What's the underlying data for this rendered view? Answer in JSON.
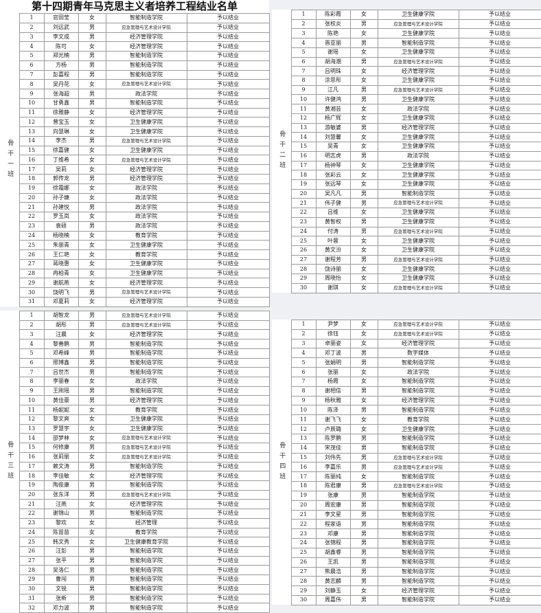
{
  "title": "第十四期青年马克思主义者培养工程结业名单",
  "tables": [
    {
      "label": "骨干一班",
      "rows": [
        [
          1,
          "官田莹",
          "女",
          "智能制造学院",
          "予以结业"
        ],
        [
          2,
          "刘远武",
          "男",
          "应急管理与艺术设计学院",
          "予以结业"
        ],
        [
          3,
          "李文成",
          "男",
          "经济管理学院",
          "予以结业"
        ],
        [
          4,
          "陈可",
          "女",
          "经济管理学院",
          "予以结业"
        ],
        [
          5,
          "郑光楠",
          "男",
          "智能制造学院",
          "予以结业"
        ],
        [
          6,
          "方杨",
          "男",
          "智能制造学院",
          "予以结业"
        ],
        [
          7,
          "彭嘉程",
          "男",
          "智能制造学院",
          "予以结业"
        ],
        [
          8,
          "吴丹花",
          "女",
          "应急管理与艺术设计学院",
          "予以结业"
        ],
        [
          9,
          "张海超",
          "男",
          "政法学院",
          "予以结业"
        ],
        [
          10,
          "甘勇鑫",
          "男",
          "智能制造学院",
          "予以结业"
        ],
        [
          11,
          "徐雅静",
          "女",
          "经济管理学院",
          "予以结业"
        ],
        [
          12,
          "曾宝玉",
          "女",
          "卫生健康学院",
          "予以结业"
        ],
        [
          13,
          "向慧琳",
          "女",
          "卫生健康学院",
          "予以结业"
        ],
        [
          14,
          "李杰",
          "男",
          "应急管理与艺术设计学院",
          "予以结业"
        ],
        [
          15,
          "徐嘉健",
          "女",
          "卫生健康学院",
          "予以结业"
        ],
        [
          16,
          "丁维希",
          "女",
          "应急管理与艺术设计学院",
          "予以结业"
        ],
        [
          17,
          "吴莉",
          "女",
          "经济管理学院",
          "予以结业"
        ],
        [
          18,
          "郭传龙",
          "男",
          "经济管理学院",
          "予以结业"
        ],
        [
          19,
          "徐霜娜",
          "女",
          "政法学院",
          "予以结业"
        ],
        [
          20,
          "孙子婕",
          "女",
          "政法学院",
          "予以结业"
        ],
        [
          21,
          "孙建悦",
          "男",
          "政法学院",
          "予以结业"
        ],
        [
          22,
          "罗玉岚",
          "女",
          "政法学院",
          "予以结业"
        ],
        [
          23,
          "袁硕",
          "男",
          "政法学院",
          "予以结业"
        ],
        [
          24,
          "杨晓楠",
          "女",
          "教育学院",
          "予以结业"
        ],
        [
          25,
          "朱丽青",
          "女",
          "卫生健康学院",
          "予以结业"
        ],
        [
          26,
          "王仁艳",
          "女",
          "教育学院",
          "予以结业"
        ],
        [
          27,
          "蒋晓惠",
          "女",
          "卫生健康学院",
          "予以结业"
        ],
        [
          28,
          "冉柏青",
          "女",
          "卫生健康学院",
          "予以结业"
        ],
        [
          29,
          "谢航燕",
          "女",
          "经济管理学院",
          "予以结业"
        ],
        [
          30,
          "饶明飞",
          "男",
          "应急管理与艺术设计学院",
          "予以结业"
        ],
        [
          31,
          "邓夏莉",
          "女",
          "经济管理学院",
          "予以结业"
        ]
      ]
    },
    {
      "label": "骨干二班",
      "rows": [
        [
          1,
          "陈彩霞",
          "女",
          "卫生健康学院",
          "予以结业"
        ],
        [
          2,
          "张权炎",
          "男",
          "应急管理与艺术设计学院",
          "予以结业"
        ],
        [
          3,
          "陈艳",
          "女",
          "卫生健康学院",
          "予以结业"
        ],
        [
          4,
          "晋亚丽",
          "男",
          "智能制造学院",
          "予以结业"
        ],
        [
          5,
          "谢瑶",
          "女",
          "卫生健康学院",
          "予以结业"
        ],
        [
          6,
          "胡海潮",
          "男",
          "应急管理与艺术设计学院",
          "予以结业"
        ],
        [
          7,
          "吕明珠",
          "女",
          "经济管理学院",
          "予以结业"
        ],
        [
          8,
          "涂思彤",
          "女",
          "卫生健康学院",
          "予以结业"
        ],
        [
          9,
          "江凡",
          "男",
          "应急管理与艺术设计学院",
          "予以结业"
        ],
        [
          10,
          "许健鸿",
          "男",
          "卫生健康学院",
          "予以结业"
        ],
        [
          11,
          "黄湘芸",
          "女",
          "政法学院",
          "予以结业"
        ],
        [
          12,
          "杨广辉",
          "女",
          "卫生健康学院",
          "予以结业"
        ],
        [
          13,
          "游敏婆",
          "男",
          "经济管理学院",
          "予以结业"
        ],
        [
          14,
          "刘慧馨",
          "女",
          "卫生健康学院",
          "予以结业"
        ],
        [
          15,
          "吴青",
          "女",
          "卫生健康学院",
          "予以结业"
        ],
        [
          16,
          "明志虎",
          "男",
          "政法学院",
          "予以结业"
        ],
        [
          17,
          "杨钟琴",
          "女",
          "卫生健康学院",
          "予以结业"
        ],
        [
          18,
          "张彩云",
          "女",
          "卫生健康学院",
          "予以结业"
        ],
        [
          19,
          "张远琴",
          "女",
          "卫生健康学院",
          "予以结业"
        ],
        [
          20,
          "吴凡凡",
          "男",
          "智能制造学院",
          "予以结业"
        ],
        [
          21,
          "伟子健",
          "男",
          "应急管理与艺术设计学院",
          "予以结业"
        ],
        [
          22,
          "吕维",
          "女",
          "卫生健康学院",
          "予以结业"
        ],
        [
          23,
          "黄智权",
          "男",
          "卫生健康学院",
          "予以结业"
        ],
        [
          24,
          "付涛",
          "男",
          "应急管理与艺术设计学院",
          "予以结业"
        ],
        [
          25,
          "叶蓉",
          "女",
          "卫生健康学院",
          "予以结业"
        ],
        [
          26,
          "黄文汾",
          "女",
          "卫生健康学院",
          "予以结业"
        ],
        [
          27,
          "谢程芳",
          "男",
          "应急管理与艺术设计学院",
          "予以结业"
        ],
        [
          28,
          "饶诗丽",
          "女",
          "卫生健康学院",
          "予以结业"
        ],
        [
          29,
          "周晓怡",
          "女",
          "卫生健康学院",
          "予以结业"
        ],
        [
          30,
          "谢琪",
          "女",
          "应急管理与艺术设计学院",
          "予以结业"
        ]
      ]
    },
    {
      "label": "骨干三班",
      "rows": [
        [
          1,
          "胡智龙",
          "男",
          "应急管理与艺术设计学院",
          "予以结业"
        ],
        [
          2,
          "胡彤",
          "男",
          "应急管理与艺术设计学院",
          "予以结业"
        ],
        [
          3,
          "汪晨",
          "女",
          "经济管理学院",
          "予以结业"
        ],
        [
          4,
          "黎善鹏",
          "男",
          "智能制造学院",
          "予以结业"
        ],
        [
          5,
          "邓希峰",
          "男",
          "智能制造学院",
          "予以结业"
        ],
        [
          6,
          "邢博鑫",
          "男",
          "智能制造学院",
          "予以结业"
        ],
        [
          7,
          "吕世杰",
          "男",
          "智能制造学院",
          "予以结业"
        ],
        [
          8,
          "李丽春",
          "女",
          "政法学院",
          "予以结业"
        ],
        [
          9,
          "王刚瑶",
          "男",
          "智能制造学院",
          "予以结业"
        ],
        [
          10,
          "黄佳豪",
          "男",
          "经济管理学院",
          "予以结业"
        ],
        [
          11,
          "杨妮妮",
          "女",
          "教育学院",
          "予以结业"
        ],
        [
          12,
          "黎文爽",
          "女",
          "卫生健康学院",
          "予以结业"
        ],
        [
          13,
          "罗慧宇",
          "女",
          "卫生健康学院",
          "予以结业"
        ],
        [
          14,
          "邵梦林",
          "女",
          "应急管理与艺术设计学院",
          "予以结业"
        ],
        [
          15,
          "何修康",
          "男",
          "应急管理与艺术设计学院",
          "予以结业"
        ],
        [
          16,
          "张莉丽",
          "女",
          "应急管理与艺术设计学院",
          "予以结业"
        ],
        [
          17,
          "赖文涛",
          "男",
          "智能制造学院",
          "予以结业"
        ],
        [
          18,
          "李佳敏",
          "女",
          "经济管理学院",
          "予以结业"
        ],
        [
          19,
          "陶俊康",
          "男",
          "智能制造学院",
          "予以结业"
        ],
        [
          20,
          "张东洋",
          "男",
          "应急管理与艺术设计学院",
          "予以结业"
        ],
        [
          21,
          "汪燕",
          "女",
          "经济管理学院",
          "予以结业"
        ],
        [
          22,
          "谢锦山",
          "男",
          "智能制造学院",
          "予以结业"
        ],
        [
          23,
          "黎欢",
          "女",
          "经济管理",
          "予以结业"
        ],
        [
          24,
          "陈苗苗",
          "女",
          "教育学院",
          "予以结业"
        ],
        [
          25,
          "韩文秀",
          "女",
          "卫生健康教育学院",
          "予以结业"
        ],
        [
          26,
          "汪彭",
          "男",
          "智能制造学院",
          "予以结业"
        ],
        [
          27,
          "张平",
          "男",
          "智能制造学院",
          "予以结业"
        ],
        [
          28,
          "吴洛仁",
          "男",
          "智能制造学院",
          "予以结业"
        ],
        [
          29,
          "曹闯",
          "男",
          "智能制造学院",
          "予以结业"
        ],
        [
          30,
          "文锐",
          "男",
          "智能制造学院",
          "予以结业"
        ],
        [
          31,
          "张新",
          "男",
          "智能制造学院",
          "予以结业"
        ],
        [
          32,
          "邓力波",
          "男",
          "智能制造学院",
          "予以结业"
        ]
      ]
    },
    {
      "label": "骨干四班",
      "rows": [
        [
          1,
          "尹梦",
          "女",
          "应急管理与艺术设计学院",
          "予以结业"
        ],
        [
          2,
          "徐钰",
          "女",
          "应急管理与艺术设计学院",
          "予以结业"
        ],
        [
          3,
          "卓丽姿",
          "女",
          "经济管理学院",
          "予以结业"
        ],
        [
          4,
          "邓丁波",
          "男",
          "数字媒体",
          "予以结业"
        ],
        [
          5,
          "张娟明",
          "男",
          "智能制造学院",
          "予以结业"
        ],
        [
          6,
          "张丽",
          "女",
          "政法学院",
          "予以结业"
        ],
        [
          7,
          "杨霞",
          "女",
          "智能制造学院",
          "予以结业"
        ],
        [
          8,
          "谢相信",
          "男",
          "智能制造学院",
          "予以结业"
        ],
        [
          9,
          "杨秋雅",
          "女",
          "经济管理学院",
          "予以结业"
        ],
        [
          10,
          "陈泽",
          "男",
          "智能制造学院",
          "予以结业"
        ],
        [
          11,
          "谢飞飞",
          "女",
          "教育学院",
          "予以结业"
        ],
        [
          12,
          "卢辰璐",
          "女",
          "卫生健康学院",
          "予以结业"
        ],
        [
          13,
          "陈罗鹏",
          "男",
          "智能制造学院",
          "予以结业"
        ],
        [
          14,
          "宋茂佳",
          "男",
          "智能制造学院",
          "予以结业"
        ],
        [
          15,
          "刘伟先",
          "男",
          "应急管理与艺术设计学院",
          "予以结业"
        ],
        [
          16,
          "李嘉乐",
          "男",
          "应急管理与艺术设计学院",
          "予以结业"
        ],
        [
          17,
          "陈丽纯",
          "女",
          "智能制造学院",
          "予以结业"
        ],
        [
          18,
          "陈君康",
          "男",
          "应急管理与艺术设计学院",
          "予以结业"
        ],
        [
          19,
          "张康",
          "男",
          "智能制造学院",
          "予以结业"
        ],
        [
          20,
          "周宏康",
          "男",
          "智能制造学院",
          "予以结业"
        ],
        [
          21,
          "李文星",
          "男",
          "智能制造学院",
          "予以结业"
        ],
        [
          22,
          "程家语",
          "男",
          "智能制造学院",
          "予以结业"
        ],
        [
          23,
          "邓康",
          "男",
          "智能制造学院",
          "予以结业"
        ],
        [
          24,
          "张锦程",
          "男",
          "智能制造学院",
          "予以结业"
        ],
        [
          25,
          "胡鑫睿",
          "男",
          "智能制造学院",
          "予以结业"
        ],
        [
          26,
          "王凯",
          "男",
          "智能制造学院",
          "予以结业"
        ],
        [
          27,
          "熊晨浩",
          "男",
          "智能制造学院",
          "予以结业"
        ],
        [
          28,
          "黄志麟",
          "男",
          "智能制造学院",
          "予以结业"
        ],
        [
          29,
          "刘静玉",
          "女",
          "经济管理学院",
          "予以结业"
        ],
        [
          30,
          "周嘉伟",
          "男",
          "智能制造学院",
          "予以结业"
        ]
      ]
    }
  ]
}
